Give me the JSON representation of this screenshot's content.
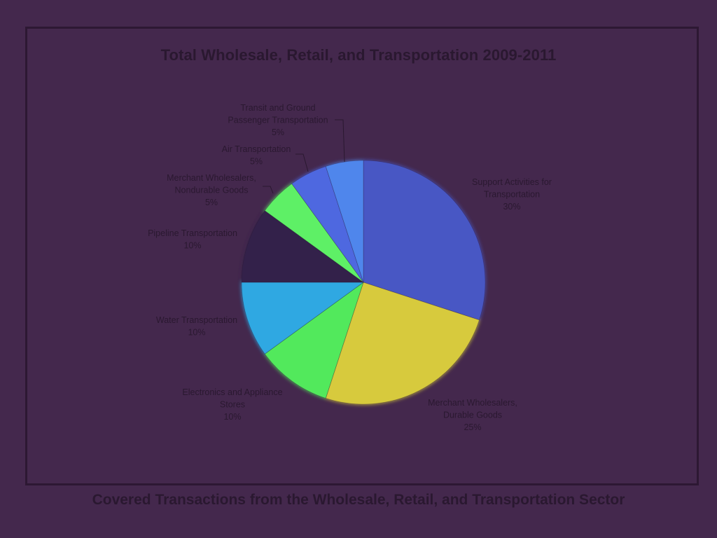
{
  "title": "Total Wholesale, Retail, and Transportation 2009-2011",
  "caption": "Covered Transactions from the Wholesale, Retail, and Transportation Sector",
  "colors": {
    "background": "#44284d",
    "frame": "#2d1833",
    "text": "#2a1830"
  },
  "chart_data": {
    "type": "pie",
    "title": "Total Wholesale, Retail, and Transportation 2009-2011",
    "slices": [
      {
        "label": "Support Activities for Transportation",
        "label_lines": [
          "Support Activities for",
          "Transportation"
        ],
        "value": 30,
        "percent_label": "30%",
        "color": "#4857c4"
      },
      {
        "label": "Merchant Wholesalers, Durable Goods",
        "label_lines": [
          "Merchant Wholesalers,",
          "Durable Goods"
        ],
        "value": 25,
        "percent_label": "25%",
        "color": "#d7ca3d"
      },
      {
        "label": "Electronics and Appliance Stores",
        "label_lines": [
          "Electronics and Appliance",
          "Stores"
        ],
        "value": 10,
        "percent_label": "10%",
        "color": "#52e95c"
      },
      {
        "label": "Water Transportation",
        "label_lines": [
          "Water Transportation"
        ],
        "value": 10,
        "percent_label": "10%",
        "color": "#2fa8e2"
      },
      {
        "label": "Pipeline Transportation",
        "label_lines": [
          "Pipeline Transportation"
        ],
        "value": 10,
        "percent_label": "10%",
        "color": "#33214a"
      },
      {
        "label": "Merchant Wholesalers, Nondurable Goods",
        "label_lines": [
          "Merchant Wholesalers,",
          "Nondurable Goods"
        ],
        "value": 5,
        "percent_label": "5%",
        "color": "#5ef066"
      },
      {
        "label": "Air Transportation",
        "label_lines": [
          "Air Transportation"
        ],
        "value": 5,
        "percent_label": "5%",
        "color": "#4e68e0"
      },
      {
        "label": "Transit and Ground Passenger Transportation",
        "label_lines": [
          "Transit and Ground",
          "Passenger Transportation"
        ],
        "value": 5,
        "percent_label": "5%",
        "color": "#4f86ec"
      }
    ],
    "start": "12 o'clock",
    "direction": "clockwise"
  }
}
